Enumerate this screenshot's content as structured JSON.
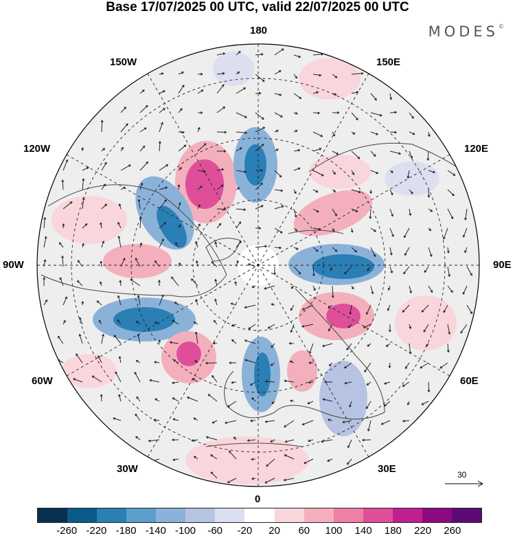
{
  "title": "Base 17/07/2025 00 UTC, valid 22/07/2025 00 UTC",
  "brand": "MODES",
  "brand_mark": "©",
  "lon_labels": {
    "top": "180",
    "bottom": "0",
    "left": "90W",
    "right": "90E",
    "nw": "150W",
    "ne": "150E",
    "wnw": "120W",
    "ene": "120E",
    "wsw": "60W",
    "esw": "60E",
    "sw": "30W",
    "se": "30E"
  },
  "reference_vector": {
    "label": "30"
  },
  "colorbar": {
    "colors": [
      "#08304f",
      "#0b5a8a",
      "#2a7fb5",
      "#5b9fcc",
      "#8ab2d9",
      "#b7c3e2",
      "#dcdff0",
      "#ffffff",
      "#f9d6db",
      "#f4afbd",
      "#ee7fa6",
      "#df4f99",
      "#c0208f",
      "#8e0a80",
      "#5c0a76"
    ],
    "ticks": [
      "-260",
      "-220",
      "-180",
      "-140",
      "-100",
      "-60",
      "-20",
      "20",
      "60",
      "100",
      "140",
      "180",
      "220",
      "260"
    ]
  }
}
